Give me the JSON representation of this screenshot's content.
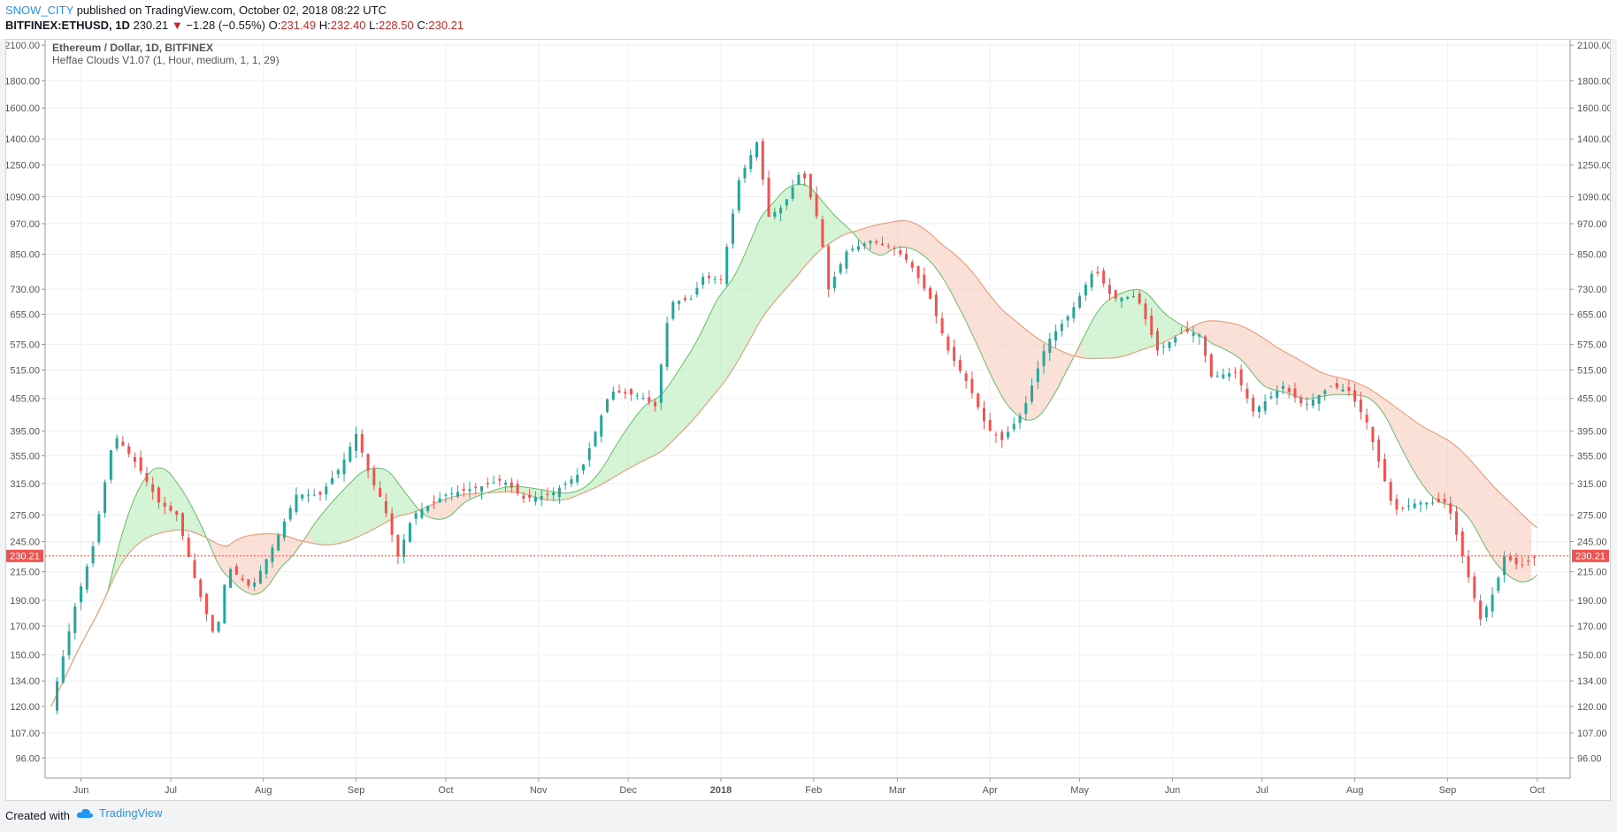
{
  "header": {
    "author": "SNOW_CITY",
    "published": "published on TradingView.com, October 02, 2018 08:22 UTC",
    "symbol": "BITFINEX:ETHUSD, 1D",
    "last": "230.21",
    "change": "−1.28 (−0.55%)",
    "o_label": "O:",
    "o": "231.49",
    "h_label": "H:",
    "h": "232.40",
    "l_label": "L:",
    "l": "228.50",
    "c_label": "C:",
    "c": "230.21"
  },
  "legend": {
    "title": "Ethereum / Dollar, 1D, BITFINEX",
    "indicator": "Heffae Clouds V1.07 (1, Hour, medium, 1, 1, 29)"
  },
  "footer": {
    "created": "Created with",
    "brand": "TradingView"
  },
  "colors": {
    "up": "#26a69a",
    "down": "#ef5350",
    "grid": "#eef0f3",
    "bullCloud": "#b9ecb9",
    "bearCloud": "#f8cbbd",
    "price": "#ef5350"
  },
  "chart_data": {
    "type": "candlestick",
    "title": "Ethereum / Dollar, 1D, BITFINEX",
    "y_scale": "log",
    "ylim": [
      88,
      2150
    ],
    "y_ticks": [
      "96.00",
      "107.00",
      "120.00",
      "134.00",
      "150.00",
      "170.00",
      "190.00",
      "215.00",
      "245.00",
      "275.00",
      "315.00",
      "355.00",
      "395.00",
      "455.00",
      "515.00",
      "575.00",
      "655.00",
      "730.00",
      "850.00",
      "970.00",
      "1090.00",
      "1250.00",
      "1400.00",
      "1600.00",
      "1800.00",
      "2100.00"
    ],
    "x_ticks": [
      "Jun",
      "Jul",
      "Aug",
      "Sep",
      "Oct",
      "Nov",
      "Dec",
      "2018",
      "Feb",
      "Mar",
      "Apr",
      "May",
      "Jun",
      "Jul",
      "Aug",
      "Sep",
      "Oct"
    ],
    "last_price": 230.21,
    "price_series": [
      {
        "date": "2017-05-22",
        "close": 120
      },
      {
        "date": "2017-05-30",
        "close": 185
      },
      {
        "date": "2017-06-05",
        "close": 240
      },
      {
        "date": "2017-06-12",
        "close": 390
      },
      {
        "date": "2017-06-20",
        "close": 340
      },
      {
        "date": "2017-06-27",
        "close": 290
      },
      {
        "date": "2017-07-03",
        "close": 275
      },
      {
        "date": "2017-07-10",
        "close": 200
      },
      {
        "date": "2017-07-16",
        "close": 160
      },
      {
        "date": "2017-07-20",
        "close": 220
      },
      {
        "date": "2017-07-28",
        "close": 200
      },
      {
        "date": "2017-08-05",
        "close": 245
      },
      {
        "date": "2017-08-12",
        "close": 300
      },
      {
        "date": "2017-08-20",
        "close": 300
      },
      {
        "date": "2017-08-27",
        "close": 340
      },
      {
        "date": "2017-09-01",
        "close": 390
      },
      {
        "date": "2017-09-06",
        "close": 320
      },
      {
        "date": "2017-09-10",
        "close": 290
      },
      {
        "date": "2017-09-15",
        "close": 230
      },
      {
        "date": "2017-09-20",
        "close": 275
      },
      {
        "date": "2017-10-01",
        "close": 300
      },
      {
        "date": "2017-10-12",
        "close": 310
      },
      {
        "date": "2017-10-20",
        "close": 320
      },
      {
        "date": "2017-10-27",
        "close": 295
      },
      {
        "date": "2017-11-05",
        "close": 300
      },
      {
        "date": "2017-11-15",
        "close": 330
      },
      {
        "date": "2017-11-25",
        "close": 470
      },
      {
        "date": "2017-12-05",
        "close": 460
      },
      {
        "date": "2017-12-10",
        "close": 440
      },
      {
        "date": "2017-12-15",
        "close": 690
      },
      {
        "date": "2017-12-22",
        "close": 700
      },
      {
        "date": "2017-12-26",
        "close": 770
      },
      {
        "date": "2018-01-01",
        "close": 760
      },
      {
        "date": "2018-01-07",
        "close": 1170
      },
      {
        "date": "2018-01-13",
        "close": 1380
      },
      {
        "date": "2018-01-17",
        "close": 1000
      },
      {
        "date": "2018-01-22",
        "close": 1050
      },
      {
        "date": "2018-01-28",
        "close": 1230
      },
      {
        "date": "2018-02-03",
        "close": 960
      },
      {
        "date": "2018-02-06",
        "close": 730
      },
      {
        "date": "2018-02-12",
        "close": 860
      },
      {
        "date": "2018-02-20",
        "close": 900
      },
      {
        "date": "2018-02-28",
        "close": 870
      },
      {
        "date": "2018-03-05",
        "close": 820
      },
      {
        "date": "2018-03-12",
        "close": 700
      },
      {
        "date": "2018-03-18",
        "close": 560
      },
      {
        "date": "2018-03-25",
        "close": 480
      },
      {
        "date": "2018-03-31",
        "close": 400
      },
      {
        "date": "2018-04-05",
        "close": 380
      },
      {
        "date": "2018-04-12",
        "close": 430
      },
      {
        "date": "2018-04-20",
        "close": 580
      },
      {
        "date": "2018-04-28",
        "close": 660
      },
      {
        "date": "2018-05-06",
        "close": 800
      },
      {
        "date": "2018-05-12",
        "close": 700
      },
      {
        "date": "2018-05-20",
        "close": 710
      },
      {
        "date": "2018-05-27",
        "close": 560
      },
      {
        "date": "2018-06-05",
        "close": 610
      },
      {
        "date": "2018-06-10",
        "close": 600
      },
      {
        "date": "2018-06-14",
        "close": 500
      },
      {
        "date": "2018-06-22",
        "close": 510
      },
      {
        "date": "2018-06-28",
        "close": 430
      },
      {
        "date": "2018-07-08",
        "close": 480
      },
      {
        "date": "2018-07-15",
        "close": 440
      },
      {
        "date": "2018-07-24",
        "close": 480
      },
      {
        "date": "2018-07-30",
        "close": 470
      },
      {
        "date": "2018-08-05",
        "close": 410
      },
      {
        "date": "2018-08-14",
        "close": 280
      },
      {
        "date": "2018-08-22",
        "close": 290
      },
      {
        "date": "2018-09-01",
        "close": 290
      },
      {
        "date": "2018-09-06",
        "close": 230
      },
      {
        "date": "2018-09-12",
        "close": 175
      },
      {
        "date": "2018-09-17",
        "close": 200
      },
      {
        "date": "2018-09-20",
        "close": 230
      },
      {
        "date": "2018-09-25",
        "close": 220
      },
      {
        "date": "2018-10-01",
        "close": 230
      }
    ]
  }
}
